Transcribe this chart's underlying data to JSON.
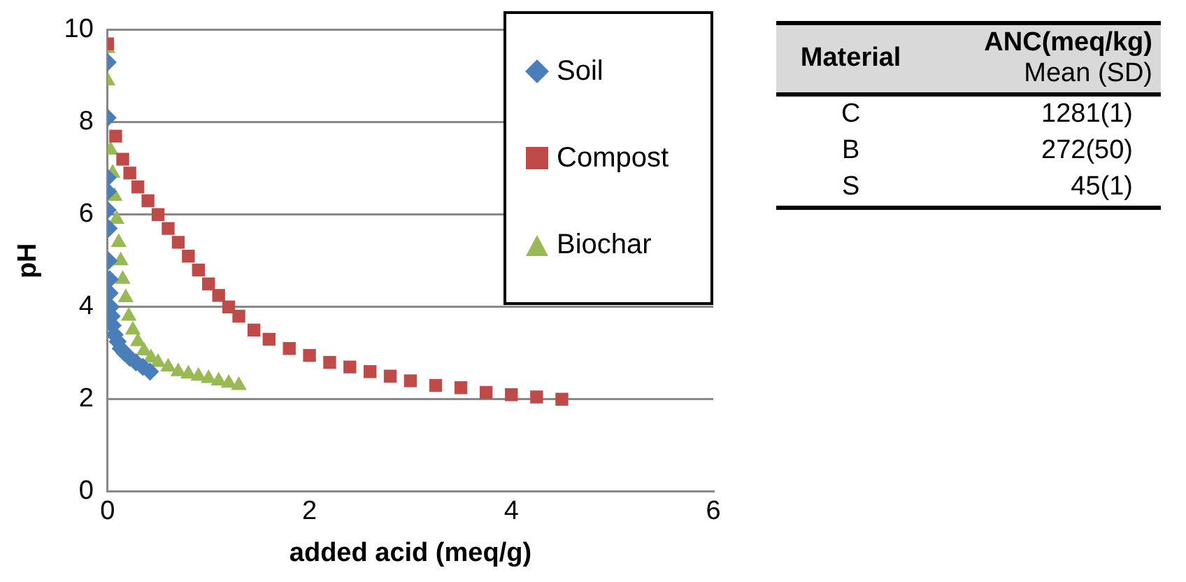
{
  "chart_data": [
    {
      "type": "scatter",
      "xlabel": "added acid (meq/g)",
      "ylabel": "pH",
      "xlim": [
        0,
        6
      ],
      "xticks": [
        0,
        2,
        4,
        6
      ],
      "ylim": [
        0,
        10
      ],
      "yticks": [
        0,
        2,
        4,
        6,
        8,
        10
      ],
      "grid": "y",
      "legend": "top right",
      "series": [
        {
          "name": "Soil",
          "color": "#4a7ebb",
          "marker": "diamond",
          "x": [
            0,
            0,
            0,
            0,
            0,
            0.01,
            0.01,
            0.02,
            0.02,
            0.03,
            0.04,
            0.05,
            0.07,
            0.1,
            0.13,
            0.17,
            0.22,
            0.28,
            0.35,
            0.42
          ],
          "values": [
            9.3,
            8.1,
            6.8,
            6.5,
            6.1,
            5.7,
            5.0,
            4.6,
            4.3,
            4.0,
            3.8,
            3.6,
            3.4,
            3.25,
            3.1,
            3.0,
            2.9,
            2.8,
            2.7,
            2.6
          ]
        },
        {
          "name": "Compost",
          "color": "#be4b48",
          "marker": "square",
          "x": [
            0,
            0.08,
            0.15,
            0.22,
            0.3,
            0.4,
            0.5,
            0.6,
            0.7,
            0.8,
            0.9,
            1.0,
            1.1,
            1.2,
            1.3,
            1.45,
            1.6,
            1.8,
            2.0,
            2.2,
            2.4,
            2.6,
            2.8,
            3.0,
            3.25,
            3.5,
            3.75,
            4.0,
            4.25,
            4.5
          ],
          "values": [
            9.7,
            7.7,
            7.2,
            6.9,
            6.6,
            6.3,
            6.0,
            5.7,
            5.4,
            5.1,
            4.8,
            4.5,
            4.25,
            4.0,
            3.8,
            3.5,
            3.3,
            3.1,
            2.95,
            2.8,
            2.7,
            2.6,
            2.5,
            2.4,
            2.3,
            2.25,
            2.15,
            2.1,
            2.05,
            2.0
          ]
        },
        {
          "name": "Biochar",
          "color": "#98b954",
          "marker": "triangle",
          "x": [
            0,
            0,
            0.03,
            0.05,
            0.07,
            0.09,
            0.11,
            0.13,
            0.15,
            0.18,
            0.21,
            0.25,
            0.3,
            0.36,
            0.43,
            0.5,
            0.6,
            0.7,
            0.8,
            0.9,
            1.0,
            1.1,
            1.2,
            1.3
          ],
          "values": [
            9.6,
            8.9,
            7.4,
            6.9,
            6.4,
            5.9,
            5.4,
            5.0,
            4.6,
            4.2,
            3.8,
            3.5,
            3.25,
            3.05,
            2.9,
            2.8,
            2.7,
            2.6,
            2.55,
            2.5,
            2.45,
            2.4,
            2.35,
            2.3
          ]
        }
      ]
    },
    {
      "type": "other",
      "annotations": [
        "Material",
        "ANC(meq/kg)",
        "Mean (SD)"
      ],
      "categories": [
        "C",
        "B",
        "S"
      ],
      "value_labels": [
        "1281(1)",
        "272(50)",
        "45(1)"
      ]
    }
  ]
}
